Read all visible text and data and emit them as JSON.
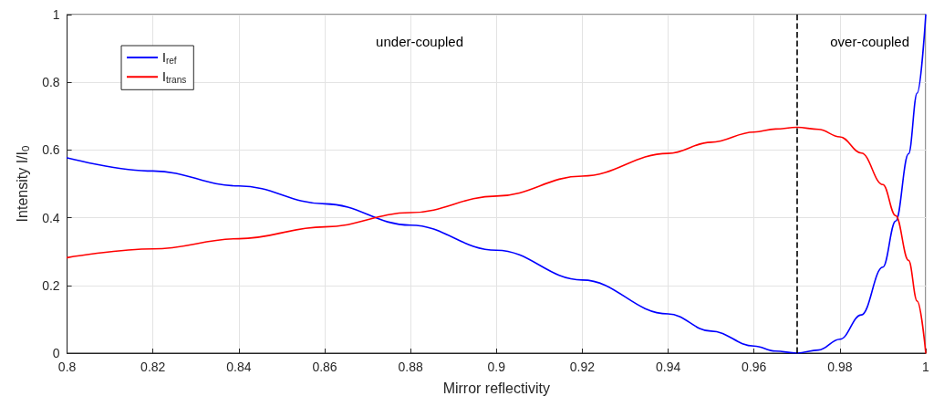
{
  "chart_data": {
    "type": "line",
    "xlabel": "Mirror reflectivity",
    "ylabel": "Intensity I/I$_{0}$",
    "x": [
      0.8,
      0.82,
      0.84,
      0.86,
      0.88,
      0.9,
      0.92,
      0.94,
      0.95,
      0.96,
      0.965,
      0.97,
      0.975,
      0.98,
      0.985,
      0.99,
      0.993,
      0.996,
      0.998,
      1.0
    ],
    "series": [
      {
        "name": "I$_{ref}$",
        "color": "#0000ff",
        "values": [
          0.577,
          0.538,
          0.494,
          0.441,
          0.378,
          0.304,
          0.216,
          0.116,
          0.065,
          0.021,
          0.006,
          0.0,
          0.009,
          0.041,
          0.113,
          0.254,
          0.39,
          0.589,
          0.768,
          1.0
        ]
      },
      {
        "name": "I$_{trans}$",
        "color": "#ff0000",
        "values": [
          0.282,
          0.308,
          0.338,
          0.373,
          0.415,
          0.464,
          0.523,
          0.59,
          0.623,
          0.653,
          0.662,
          0.667,
          0.661,
          0.639,
          0.591,
          0.498,
          0.406,
          0.274,
          0.154,
          0.0
        ]
      }
    ],
    "xlim": [
      0.8,
      1
    ],
    "xticks": [
      0.8,
      0.82,
      0.84,
      0.86,
      0.88,
      0.9,
      0.92,
      0.94,
      0.96,
      0.98,
      1
    ],
    "ylim": [
      0,
      1
    ],
    "yticks": [
      0,
      0.2,
      0.4,
      0.6,
      0.8,
      1
    ],
    "ref_lines": [
      {
        "axis": "x",
        "value": 0.97,
        "color": "#000000",
        "line_style": "dashed"
      }
    ],
    "annotations": [
      "under-coupled",
      "over-coupled"
    ],
    "grid": true,
    "legend": "top left",
    "marker": "none",
    "line_style": "solid"
  }
}
